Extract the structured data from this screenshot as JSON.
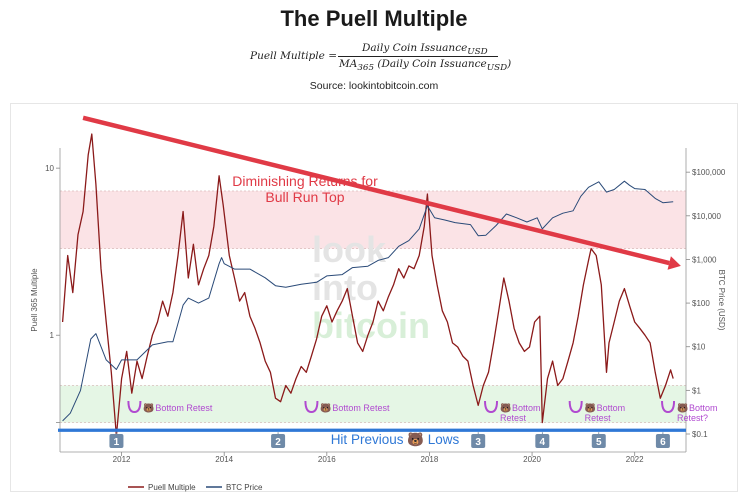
{
  "header": {
    "title": "The Puell Multiple",
    "formula_lhs": "Puell Multiple =",
    "formula_numerator": "Daily Coin Issuance",
    "formula_numerator_sub": "USD",
    "formula_denominator": "MA",
    "formula_denominator_sub": "365",
    "formula_denominator_rest": " (Daily Coin Issuance",
    "formula_denominator_rest_sub": "USD",
    "formula_denominator_close": ")",
    "source": "Source: lookintobitcoin.com"
  },
  "chart_data": {
    "type": "line",
    "title": "",
    "xlabel": "",
    "ylabel_left": "Puell 365 Multiple",
    "ylabel_right": "BTC Price (USD)",
    "x_range": [
      2010.8,
      2023.0
    ],
    "y_left_scale": "log",
    "y_left_ticks": [
      {
        "value": 10,
        "label": "10"
      },
      {
        "value": 1,
        "label": "1"
      },
      {
        "value": 0.3,
        "label": ""
      },
      {
        "value": 0.1,
        "label": ""
      }
    ],
    "y_right_scale": "log",
    "y_right_ticks": [
      {
        "value": 100000,
        "label": "$100,000"
      },
      {
        "value": 10000,
        "label": "$10,000"
      },
      {
        "value": 1000,
        "label": "$1,000"
      },
      {
        "value": 100,
        "label": "$100"
      },
      {
        "value": 10,
        "label": "$10"
      },
      {
        "value": 1,
        "label": "$1"
      },
      {
        "value": 0.1,
        "label": "$0.1"
      }
    ],
    "x_ticks": [
      {
        "value": 2012,
        "label": "2012"
      },
      {
        "value": 2014,
        "label": "2014"
      },
      {
        "value": 2016,
        "label": "2016"
      },
      {
        "value": 2018,
        "label": "2018"
      },
      {
        "value": 2020,
        "label": "2020"
      },
      {
        "value": 2022,
        "label": "2022"
      }
    ],
    "bands": [
      {
        "name": "red-band",
        "from": 3.3,
        "to": 7.3,
        "color": "#fbe3e6"
      },
      {
        "name": "green-band",
        "from": 0.3,
        "to": 0.5,
        "color": "#e5f6e5"
      }
    ],
    "legend": {
      "position": "bottom-left",
      "items": [
        {
          "label": "Puell Multiple",
          "color": "#8b1a1a"
        },
        {
          "label": "BTC Price",
          "color": "#2a4a78"
        }
      ]
    },
    "watermark": [
      "look",
      "into",
      "bitcoin"
    ],
    "series": [
      {
        "name": "Puell Multiple",
        "color": "#8b1a1a",
        "axis": "left",
        "points": [
          [
            2010.85,
            1.2
          ],
          [
            2010.95,
            3.0
          ],
          [
            2011.05,
            1.8
          ],
          [
            2011.15,
            4.0
          ],
          [
            2011.25,
            5.5
          ],
          [
            2011.35,
            12.0
          ],
          [
            2011.42,
            16.0
          ],
          [
            2011.5,
            8.0
          ],
          [
            2011.6,
            2.5
          ],
          [
            2011.7,
            1.2
          ],
          [
            2011.8,
            0.6
          ],
          [
            2011.9,
            0.25
          ],
          [
            2012.0,
            0.55
          ],
          [
            2012.1,
            0.8
          ],
          [
            2012.2,
            0.45
          ],
          [
            2012.3,
            0.7
          ],
          [
            2012.4,
            0.55
          ],
          [
            2012.5,
            0.75
          ],
          [
            2012.6,
            1.0
          ],
          [
            2012.7,
            1.2
          ],
          [
            2012.8,
            1.6
          ],
          [
            2012.9,
            1.3
          ],
          [
            2013.0,
            1.8
          ],
          [
            2013.1,
            3.0
          ],
          [
            2013.2,
            5.5
          ],
          [
            2013.3,
            2.2
          ],
          [
            2013.4,
            3.5
          ],
          [
            2013.5,
            2.0
          ],
          [
            2013.6,
            2.5
          ],
          [
            2013.7,
            3.0
          ],
          [
            2013.8,
            4.5
          ],
          [
            2013.9,
            9.0
          ],
          [
            2013.98,
            6.0
          ],
          [
            2014.1,
            3.0
          ],
          [
            2014.2,
            2.2
          ],
          [
            2014.3,
            1.6
          ],
          [
            2014.4,
            1.8
          ],
          [
            2014.5,
            1.3
          ],
          [
            2014.6,
            1.1
          ],
          [
            2014.7,
            0.9
          ],
          [
            2014.8,
            0.7
          ],
          [
            2014.9,
            0.6
          ],
          [
            2015.0,
            0.42
          ],
          [
            2015.1,
            0.4
          ],
          [
            2015.2,
            0.5
          ],
          [
            2015.3,
            0.45
          ],
          [
            2015.4,
            0.55
          ],
          [
            2015.5,
            0.65
          ],
          [
            2015.6,
            0.6
          ],
          [
            2015.7,
            0.75
          ],
          [
            2015.8,
            0.95
          ],
          [
            2015.9,
            1.3
          ],
          [
            2016.0,
            1.5
          ],
          [
            2016.1,
            1.2
          ],
          [
            2016.2,
            1.4
          ],
          [
            2016.3,
            1.6
          ],
          [
            2016.4,
            1.9
          ],
          [
            2016.5,
            1.3
          ],
          [
            2016.6,
            0.9
          ],
          [
            2016.7,
            0.8
          ],
          [
            2016.8,
            1.0
          ],
          [
            2016.9,
            1.2
          ],
          [
            2017.0,
            1.6
          ],
          [
            2017.1,
            1.4
          ],
          [
            2017.2,
            1.7
          ],
          [
            2017.3,
            2.0
          ],
          [
            2017.4,
            2.5
          ],
          [
            2017.5,
            2.2
          ],
          [
            2017.6,
            2.6
          ],
          [
            2017.7,
            2.5
          ],
          [
            2017.8,
            3.0
          ],
          [
            2017.9,
            4.5
          ],
          [
            2017.96,
            7.0
          ],
          [
            2018.05,
            3.0
          ],
          [
            2018.15,
            2.0
          ],
          [
            2018.25,
            1.4
          ],
          [
            2018.35,
            1.2
          ],
          [
            2018.45,
            0.9
          ],
          [
            2018.55,
            0.85
          ],
          [
            2018.65,
            0.75
          ],
          [
            2018.75,
            0.7
          ],
          [
            2018.85,
            0.5
          ],
          [
            2018.95,
            0.38
          ],
          [
            2019.05,
            0.5
          ],
          [
            2019.15,
            0.6
          ],
          [
            2019.25,
            0.9
          ],
          [
            2019.35,
            1.4
          ],
          [
            2019.45,
            2.2
          ],
          [
            2019.55,
            1.6
          ],
          [
            2019.65,
            1.1
          ],
          [
            2019.75,
            0.9
          ],
          [
            2019.85,
            0.8
          ],
          [
            2019.95,
            0.85
          ],
          [
            2020.05,
            1.2
          ],
          [
            2020.15,
            1.3
          ],
          [
            2020.2,
            0.3
          ],
          [
            2020.3,
            0.55
          ],
          [
            2020.4,
            0.7
          ],
          [
            2020.5,
            0.5
          ],
          [
            2020.6,
            0.55
          ],
          [
            2020.7,
            0.7
          ],
          [
            2020.8,
            0.9
          ],
          [
            2020.9,
            1.3
          ],
          [
            2021.0,
            2.0
          ],
          [
            2021.1,
            2.8
          ],
          [
            2021.15,
            3.3
          ],
          [
            2021.25,
            3.0
          ],
          [
            2021.35,
            2.0
          ],
          [
            2021.45,
            0.6
          ],
          [
            2021.5,
            0.9
          ],
          [
            2021.6,
            1.2
          ],
          [
            2021.7,
            1.6
          ],
          [
            2021.8,
            1.9
          ],
          [
            2021.9,
            1.5
          ],
          [
            2022.0,
            1.2
          ],
          [
            2022.1,
            1.1
          ],
          [
            2022.2,
            1.0
          ],
          [
            2022.3,
            0.9
          ],
          [
            2022.4,
            0.6
          ],
          [
            2022.5,
            0.42
          ],
          [
            2022.6,
            0.5
          ],
          [
            2022.7,
            0.62
          ],
          [
            2022.75,
            0.55
          ]
        ]
      },
      {
        "name": "BTC Price",
        "color": "#2a4a78",
        "axis": "right",
        "points": [
          [
            2010.85,
            0.2
          ],
          [
            2011.0,
            0.3
          ],
          [
            2011.2,
            1.0
          ],
          [
            2011.4,
            15.0
          ],
          [
            2011.5,
            20.0
          ],
          [
            2011.7,
            5.0
          ],
          [
            2011.9,
            3.0
          ],
          [
            2012.0,
            5.0
          ],
          [
            2012.3,
            5.0
          ],
          [
            2012.6,
            11.0
          ],
          [
            2012.9,
            13.0
          ],
          [
            2013.0,
            13.0
          ],
          [
            2013.2,
            90.0
          ],
          [
            2013.3,
            130.0
          ],
          [
            2013.5,
            100.0
          ],
          [
            2013.7,
            130.0
          ],
          [
            2013.9,
            800.0
          ],
          [
            2013.95,
            1100.0
          ],
          [
            2014.0,
            800.0
          ],
          [
            2014.2,
            600.0
          ],
          [
            2014.5,
            600.0
          ],
          [
            2014.8,
            380.0
          ],
          [
            2015.0,
            250.0
          ],
          [
            2015.2,
            230.0
          ],
          [
            2015.5,
            270.0
          ],
          [
            2015.8,
            300.0
          ],
          [
            2016.0,
            420.0
          ],
          [
            2016.3,
            450.0
          ],
          [
            2016.5,
            650.0
          ],
          [
            2016.8,
            700.0
          ],
          [
            2017.0,
            950.0
          ],
          [
            2017.2,
            1100.0
          ],
          [
            2017.4,
            2000.0
          ],
          [
            2017.6,
            2700.0
          ],
          [
            2017.8,
            5000.0
          ],
          [
            2017.96,
            17000.0
          ],
          [
            2018.1,
            9000.0
          ],
          [
            2018.3,
            8000.0
          ],
          [
            2018.5,
            7000.0
          ],
          [
            2018.8,
            6300.0
          ],
          [
            2018.95,
            3500.0
          ],
          [
            2019.1,
            3600.0
          ],
          [
            2019.3,
            6000.0
          ],
          [
            2019.5,
            11000.0
          ],
          [
            2019.7,
            9000.0
          ],
          [
            2019.9,
            7200.0
          ],
          [
            2020.1,
            9000.0
          ],
          [
            2020.2,
            5000.0
          ],
          [
            2020.4,
            9000.0
          ],
          [
            2020.6,
            11500.0
          ],
          [
            2020.8,
            13000.0
          ],
          [
            2020.95,
            28000.0
          ],
          [
            2021.1,
            45000.0
          ],
          [
            2021.3,
            60000.0
          ],
          [
            2021.45,
            35000.0
          ],
          [
            2021.6,
            40000.0
          ],
          [
            2021.8,
            62000.0
          ],
          [
            2021.9,
            50000.0
          ],
          [
            2022.0,
            42000.0
          ],
          [
            2022.2,
            40000.0
          ],
          [
            2022.4,
            25000.0
          ],
          [
            2022.55,
            20000.0
          ],
          [
            2022.75,
            21000.0
          ]
        ]
      }
    ],
    "annotations": {
      "trend_arrow": {
        "from": [
          2011.25,
          20.0
        ],
        "to": [
          2022.9,
          2.6
        ],
        "color": "#e03a46"
      },
      "trend_text": [
        "Diminishing Returns for",
        "Bull Run Top"
      ],
      "hline": {
        "value": 0.27,
        "color": "#2f78d6",
        "label_before": "Hit Previous",
        "label_after": "Lows",
        "emoji": "🐻"
      },
      "markers": [
        {
          "label": "1",
          "x": 2011.9
        },
        {
          "label": "2",
          "x": 2015.05
        },
        {
          "label": "3",
          "x": 2018.95
        },
        {
          "label": "4",
          "x": 2020.2
        },
        {
          "label": "5",
          "x": 2021.3
        },
        {
          "label": "6",
          "x": 2022.55
        }
      ],
      "retests": [
        {
          "x": 2012.25,
          "lines": [
            "Bottom Retest"
          ]
        },
        {
          "x": 2015.7,
          "lines": [
            "Bottom Retest"
          ]
        },
        {
          "x": 2019.2,
          "lines": [
            "Bottom",
            "Retest"
          ]
        },
        {
          "x": 2020.85,
          "lines": [
            "Bottom",
            "Retest"
          ]
        },
        {
          "x": 2022.65,
          "lines": [
            "Bottom",
            "Retest?"
          ]
        }
      ],
      "retest_emoji": "🐻",
      "retest_color": "#b04ad0"
    }
  }
}
